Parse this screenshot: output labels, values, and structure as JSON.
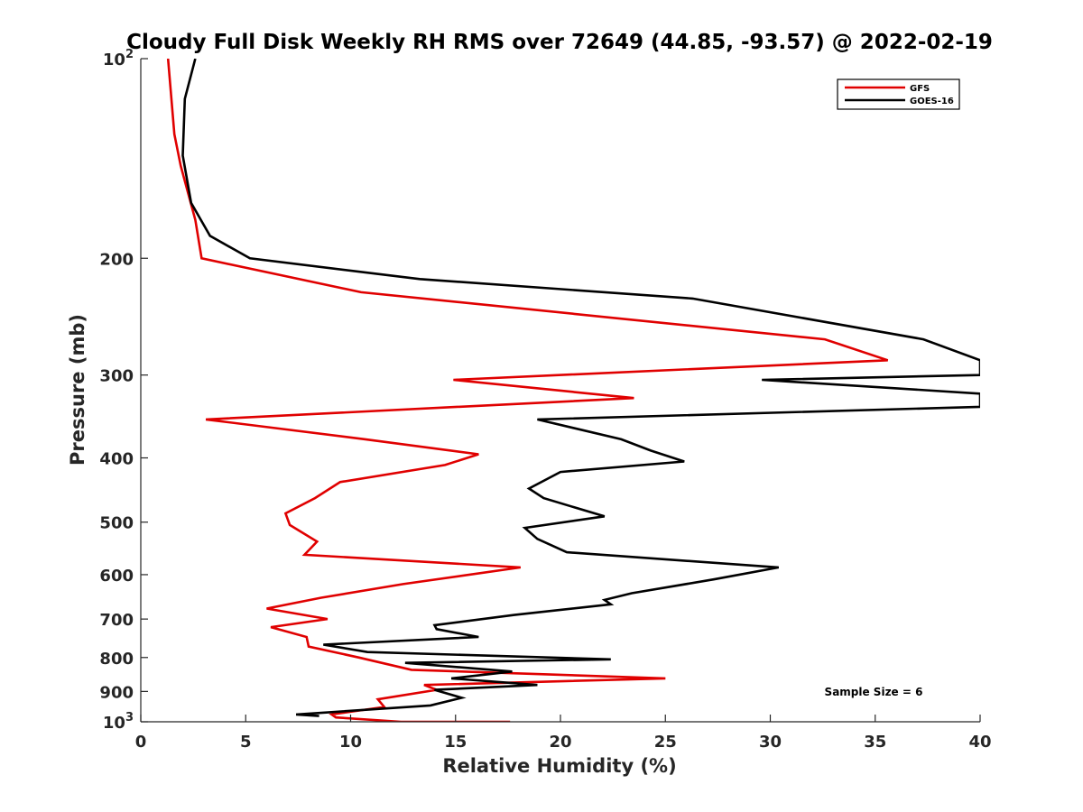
{
  "chart_data": {
    "type": "line",
    "title": "Cloudy Full Disk Weekly RH RMS over 72649 (44.85, -93.57) @ 2022-02-19",
    "xlabel": "Relative Humidity (%)",
    "ylabel": "Pressure (mb)",
    "xlim": [
      0,
      40
    ],
    "ylim": [
      100,
      1000
    ],
    "yscale": "log",
    "y_reversed": true,
    "x_ticks": [
      "0",
      "5",
      "10",
      "15",
      "20",
      "25",
      "30",
      "35",
      "40"
    ],
    "y_ticks": [
      {
        "value": 100,
        "base": "10",
        "exp": "2"
      },
      {
        "value": 200,
        "label": "200"
      },
      {
        "value": 300,
        "label": "300"
      },
      {
        "value": 400,
        "label": "400"
      },
      {
        "value": 500,
        "label": "500"
      },
      {
        "value": 600,
        "label": "600"
      },
      {
        "value": 700,
        "label": "700"
      },
      {
        "value": 800,
        "label": "800"
      },
      {
        "value": 900,
        "label": "900"
      },
      {
        "value": 1000,
        "base": "10",
        "exp": "3"
      }
    ],
    "grid": false,
    "legend_position": "top-right",
    "annotation": "Sample Size = 6",
    "series": [
      {
        "name": "GFS",
        "color": "#e00000",
        "x": [
          1.3,
          1.6,
          1.9,
          2.6,
          2.9,
          10.5,
          32.6,
          35.6,
          14.9,
          23.5,
          3.1,
          10.7,
          16.1,
          14.5,
          9.5,
          8.3,
          6.9,
          7.1,
          8.4,
          7.8,
          18.1,
          12.5,
          8.6,
          6.0,
          8.9,
          6.2,
          7.9,
          8.0,
          10.4,
          12.9,
          25.0,
          13.5,
          14.1,
          11.3,
          11.6,
          9.1,
          9.3,
          12.4,
          17.6
        ],
        "y": [
          100,
          130,
          145,
          175,
          200,
          225,
          265,
          285,
          305,
          325,
          350,
          375,
          395,
          410,
          435,
          460,
          485,
          505,
          535,
          560,
          585,
          620,
          650,
          675,
          700,
          720,
          745,
          770,
          800,
          835,
          860,
          880,
          895,
          925,
          950,
          975,
          985,
          1000,
          1000
        ]
      },
      {
        "name": "GOES-16",
        "color": "#000000",
        "x": [
          2.6,
          2.1,
          2.0,
          2.4,
          3.3,
          5.2,
          13.3,
          26.3,
          37.3,
          40.0,
          40.0,
          29.6,
          40.0,
          40.0,
          18.9,
          22.9,
          24.3,
          25.9,
          20.0,
          18.5,
          19.2,
          22.1,
          18.3,
          18.9,
          20.3,
          30.4,
          27.3,
          23.4,
          22.1,
          22.4,
          17.8,
          14.0,
          14.1,
          16.1,
          8.7,
          10.8,
          22.4,
          12.6,
          17.7,
          14.8,
          18.9,
          14.0,
          15.3,
          13.8,
          7.4,
          8.5
        ],
        "y": [
          100,
          115,
          140,
          165,
          185,
          200,
          215,
          230,
          265,
          285,
          300,
          305,
          320,
          335,
          350,
          375,
          390,
          405,
          420,
          445,
          460,
          490,
          510,
          530,
          555,
          585,
          610,
          640,
          655,
          665,
          690,
          715,
          725,
          745,
          765,
          785,
          805,
          815,
          840,
          860,
          880,
          895,
          920,
          945,
          975,
          980
        ]
      }
    ]
  }
}
